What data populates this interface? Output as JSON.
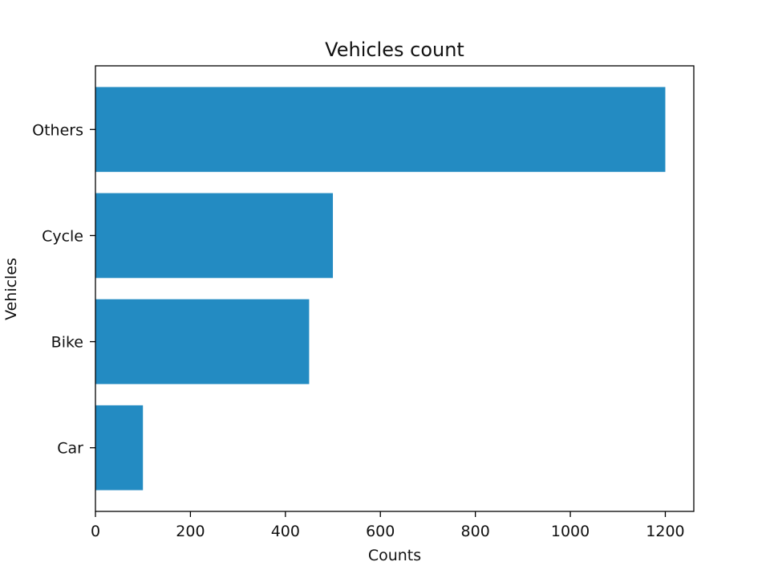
{
  "chart_data": {
    "type": "bar",
    "orientation": "horizontal",
    "title": "Vehicles count",
    "xlabel": "Counts",
    "ylabel": "Vehicles",
    "categories": [
      "Car",
      "Bike",
      "Cycle",
      "Others"
    ],
    "values": [
      100,
      450,
      500,
      1200
    ],
    "xlim": [
      0,
      1260
    ],
    "xticks": [
      0,
      200,
      400,
      600,
      800,
      1000,
      1200
    ],
    "grid": false,
    "legend": "none",
    "bar_color": "#238bc2"
  }
}
